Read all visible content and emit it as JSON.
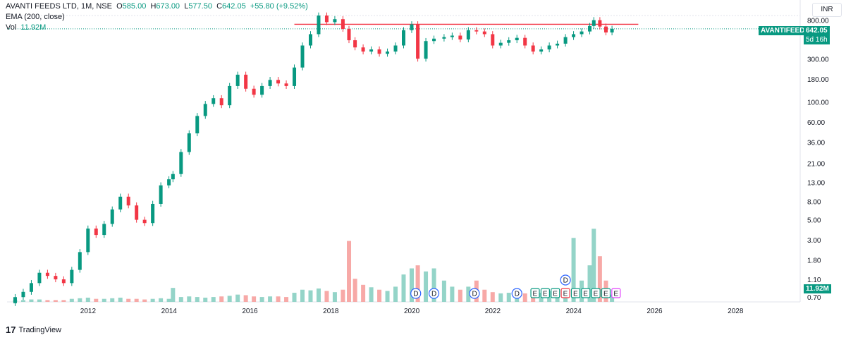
{
  "header": {
    "symbol_line": "AVANTI FEEDS LTD, 1M, NSE",
    "o_label": "O",
    "o_value": "585.00",
    "h_label": "H",
    "h_value": "673.00",
    "l_label": "L",
    "l_value": "577.50",
    "c_label": "C",
    "c_value": "642.05",
    "change": "+55.80 (+9.52%)",
    "ema_label": "EMA (200, close)",
    "vol_label": "Vol",
    "vol_value": "11.92M"
  },
  "currency": "INR",
  "price_badge": {
    "ticker": "AVANTIFEED",
    "price": "642.05",
    "countdown": "5d 16h"
  },
  "volume_badge": "11.92M",
  "footer": {
    "brand": "TradingView"
  },
  "colors": {
    "up": "#089981",
    "down": "#f23645",
    "up_vol": "#94d4c8",
    "down_vol": "#f7a9a7",
    "resistance": "#f23645",
    "dividend": "#2962ff",
    "earnings": "#089981"
  },
  "chart_data": {
    "type": "candlestick",
    "scale": "log",
    "y_ticks": [
      "800.00",
      "500.00",
      "300.00",
      "180.00",
      "100.00",
      "60.00",
      "36.00",
      "21.00",
      "13.00",
      "8.00",
      "5.00",
      "3.00",
      "1.80",
      "1.10",
      "0.70"
    ],
    "x_ticks": [
      "2012",
      "2014",
      "2016",
      "2018",
      "2020",
      "2022",
      "2024",
      "2026",
      "2028"
    ],
    "resistance_level": 720,
    "last_close": 642.05,
    "series": [
      {
        "year": 2010.2,
        "o": 0.6,
        "c": 0.7,
        "v": 0.3
      },
      {
        "year": 2010.4,
        "o": 0.7,
        "c": 0.8,
        "v": 0.3
      },
      {
        "year": 2010.6,
        "o": 0.8,
        "c": 1.0,
        "v": 0.4
      },
      {
        "year": 2010.8,
        "o": 1.0,
        "c": 1.3,
        "v": 0.4
      },
      {
        "year": 2011.0,
        "o": 1.3,
        "c": 1.2,
        "v": 0.3
      },
      {
        "year": 2011.2,
        "o": 1.2,
        "c": 1.1,
        "v": 0.3
      },
      {
        "year": 2011.4,
        "o": 1.1,
        "c": 1.0,
        "v": 0.3
      },
      {
        "year": 2011.6,
        "o": 1.0,
        "c": 1.4,
        "v": 0.5
      },
      {
        "year": 2011.8,
        "o": 1.4,
        "c": 2.2,
        "v": 0.6
      },
      {
        "year": 2012.0,
        "o": 2.2,
        "c": 4.0,
        "v": 0.7
      },
      {
        "year": 2012.2,
        "o": 4.0,
        "c": 3.4,
        "v": 0.5
      },
      {
        "year": 2012.4,
        "o": 3.4,
        "c": 4.5,
        "v": 0.5
      },
      {
        "year": 2012.6,
        "o": 4.5,
        "c": 6.5,
        "v": 0.6
      },
      {
        "year": 2012.8,
        "o": 6.5,
        "c": 9.0,
        "v": 0.7
      },
      {
        "year": 2013.0,
        "o": 9.0,
        "c": 7.2,
        "v": 0.5
      },
      {
        "year": 2013.2,
        "o": 7.2,
        "c": 5.0,
        "v": 0.5
      },
      {
        "year": 2013.4,
        "o": 5.0,
        "c": 4.6,
        "v": 0.4
      },
      {
        "year": 2013.6,
        "o": 4.6,
        "c": 7.5,
        "v": 0.5
      },
      {
        "year": 2013.8,
        "o": 7.5,
        "c": 12,
        "v": 0.6
      },
      {
        "year": 2014.0,
        "o": 12,
        "c": 14,
        "v": 0.5
      },
      {
        "year": 2014.1,
        "o": 14,
        "c": 16,
        "v": 2.3
      },
      {
        "year": 2014.3,
        "o": 16,
        "c": 28,
        "v": 0.8
      },
      {
        "year": 2014.5,
        "o": 28,
        "c": 45,
        "v": 0.9
      },
      {
        "year": 2014.7,
        "o": 45,
        "c": 70,
        "v": 0.8
      },
      {
        "year": 2014.9,
        "o": 70,
        "c": 95,
        "v": 0.7
      },
      {
        "year": 2015.1,
        "o": 95,
        "c": 110,
        "v": 0.8
      },
      {
        "year": 2015.3,
        "o": 110,
        "c": 92,
        "v": 0.9
      },
      {
        "year": 2015.5,
        "o": 92,
        "c": 150,
        "v": 1.0
      },
      {
        "year": 2015.7,
        "o": 150,
        "c": 200,
        "v": 1.2
      },
      {
        "year": 2015.9,
        "o": 200,
        "c": 140,
        "v": 1.1
      },
      {
        "year": 2016.1,
        "o": 140,
        "c": 120,
        "v": 0.9
      },
      {
        "year": 2016.3,
        "o": 120,
        "c": 150,
        "v": 0.8
      },
      {
        "year": 2016.5,
        "o": 150,
        "c": 175,
        "v": 0.9
      },
      {
        "year": 2016.7,
        "o": 175,
        "c": 160,
        "v": 0.9
      },
      {
        "year": 2016.9,
        "o": 160,
        "c": 150,
        "v": 0.8
      },
      {
        "year": 2017.1,
        "o": 150,
        "c": 240,
        "v": 1.5
      },
      {
        "year": 2017.3,
        "o": 240,
        "c": 420,
        "v": 2.0
      },
      {
        "year": 2017.5,
        "o": 420,
        "c": 560,
        "v": 1.9
      },
      {
        "year": 2017.7,
        "o": 560,
        "c": 900,
        "v": 2.2
      },
      {
        "year": 2017.9,
        "o": 900,
        "c": 760,
        "v": 1.8
      },
      {
        "year": 2018.1,
        "o": 760,
        "c": 820,
        "v": 1.6
      },
      {
        "year": 2018.3,
        "o": 820,
        "c": 640,
        "v": 2.0
      },
      {
        "year": 2018.45,
        "o": 640,
        "c": 480,
        "v": 10.0
      },
      {
        "year": 2018.6,
        "o": 480,
        "c": 400,
        "v": 3.8
      },
      {
        "year": 2018.8,
        "o": 400,
        "c": 360,
        "v": 2.8
      },
      {
        "year": 2019.0,
        "o": 360,
        "c": 380,
        "v": 2.4
      },
      {
        "year": 2019.2,
        "o": 380,
        "c": 340,
        "v": 2.0
      },
      {
        "year": 2019.4,
        "o": 340,
        "c": 360,
        "v": 1.8
      },
      {
        "year": 2019.6,
        "o": 360,
        "c": 420,
        "v": 2.5
      },
      {
        "year": 2019.8,
        "o": 420,
        "c": 620,
        "v": 4.5
      },
      {
        "year": 2020.0,
        "o": 620,
        "c": 720,
        "v": 5.5
      },
      {
        "year": 2020.15,
        "o": 720,
        "c": 300,
        "v": 6.0
      },
      {
        "year": 2020.35,
        "o": 300,
        "c": 470,
        "v": 5.0
      },
      {
        "year": 2020.55,
        "o": 470,
        "c": 500,
        "v": 5.5
      },
      {
        "year": 2020.8,
        "o": 500,
        "c": 520,
        "v": 3.5
      },
      {
        "year": 2021.0,
        "o": 520,
        "c": 540,
        "v": 2.5
      },
      {
        "year": 2021.2,
        "o": 540,
        "c": 490,
        "v": 2.0
      },
      {
        "year": 2021.4,
        "o": 490,
        "c": 620,
        "v": 2.5
      },
      {
        "year": 2021.6,
        "o": 620,
        "c": 600,
        "v": 3.5
      },
      {
        "year": 2021.8,
        "o": 600,
        "c": 560,
        "v": 2.0
      },
      {
        "year": 2022.0,
        "o": 560,
        "c": 420,
        "v": 1.6
      },
      {
        "year": 2022.2,
        "o": 420,
        "c": 450,
        "v": 1.4
      },
      {
        "year": 2022.4,
        "o": 450,
        "c": 480,
        "v": 1.5
      },
      {
        "year": 2022.6,
        "o": 480,
        "c": 510,
        "v": 1.6
      },
      {
        "year": 2022.8,
        "o": 510,
        "c": 420,
        "v": 1.4
      },
      {
        "year": 2023.0,
        "o": 420,
        "c": 360,
        "v": 1.5
      },
      {
        "year": 2023.2,
        "o": 360,
        "c": 380,
        "v": 1.5
      },
      {
        "year": 2023.4,
        "o": 380,
        "c": 420,
        "v": 1.8
      },
      {
        "year": 2023.6,
        "o": 420,
        "c": 440,
        "v": 1.6
      },
      {
        "year": 2023.8,
        "o": 440,
        "c": 520,
        "v": 2.2
      },
      {
        "year": 2024.0,
        "o": 520,
        "c": 560,
        "v": 10.5
      },
      {
        "year": 2024.2,
        "o": 560,
        "c": 600,
        "v": 3.5
      },
      {
        "year": 2024.4,
        "o": 600,
        "c": 690,
        "v": 6.0
      },
      {
        "year": 2024.5,
        "o": 690,
        "c": 800,
        "v": 12.0
      },
      {
        "year": 2024.65,
        "o": 800,
        "c": 680,
        "v": 7.5
      },
      {
        "year": 2024.8,
        "o": 680,
        "c": 585,
        "v": 3.5
      },
      {
        "year": 2024.95,
        "o": 585,
        "c": 642,
        "v": 1.2
      }
    ],
    "dividends": [
      2020.1,
      2020.55,
      2021.55,
      2022.6,
      2023.8
    ],
    "earnings": [
      2023.05,
      2023.3,
      2023.55,
      2023.8,
      2024.05,
      2024.3,
      2024.55,
      2024.8,
      2025.05
    ],
    "earnings_label": "E",
    "dividend_label": "D"
  }
}
